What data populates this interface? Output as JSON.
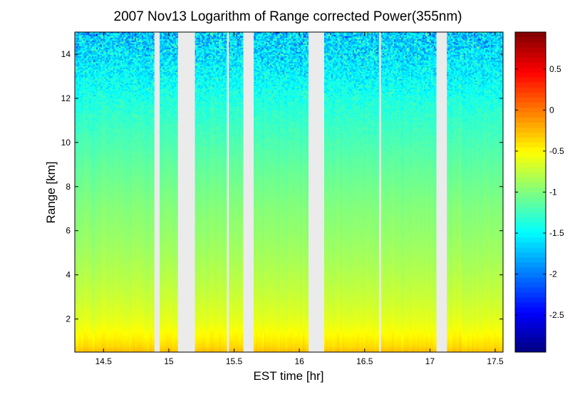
{
  "chart_data": {
    "type": "heatmap",
    "title": "2007 Nov13  Logarithm of Range corrected Power(355nm)",
    "xlabel": "EST time [hr]",
    "ylabel": "Range [km]",
    "xlim": [
      14.28,
      17.56
    ],
    "ylim": [
      0.5,
      15.0
    ],
    "x_ticks": [
      14.5,
      15,
      15.5,
      16,
      16.5,
      17,
      17.5
    ],
    "x_tick_labels": [
      "14.5",
      "15",
      "15.5",
      "16",
      "16.5",
      "17",
      "17.5"
    ],
    "y_ticks": [
      2,
      4,
      6,
      8,
      10,
      12,
      14
    ],
    "y_tick_labels": [
      "2",
      "4",
      "6",
      "8",
      "10",
      "12",
      "14"
    ],
    "colormap": "jet",
    "colorbar": {
      "clim": [
        -2.95,
        0.95
      ],
      "ticks": [
        0.5,
        0,
        -0.5,
        -1,
        -1.5,
        -2,
        -2.5
      ],
      "tick_labels": [
        "0.5",
        "0",
        "-0.5",
        "-1",
        "-1.5",
        "-2",
        "-2.5"
      ]
    },
    "data_gaps_hr": [
      [
        14.89,
        14.93
      ],
      [
        15.07,
        15.2
      ],
      [
        15.445,
        15.46
      ],
      [
        15.57,
        15.65
      ],
      [
        16.07,
        16.19
      ],
      [
        16.61,
        16.625
      ],
      [
        17.05,
        17.13
      ]
    ],
    "gap_color": "#ebebeb",
    "signal_profile": {
      "range_km": [
        0.5,
        0.8,
        1.2,
        1.6,
        2.0,
        3.0,
        4.0,
        5.0,
        6.0,
        7.0,
        8.0,
        9.0,
        10.0,
        11.0,
        12.0,
        13.0,
        14.0,
        15.0
      ],
      "log_power": [
        -0.25,
        -0.38,
        -0.48,
        -0.56,
        -0.62,
        -0.72,
        -0.8,
        -0.87,
        -0.93,
        -0.98,
        -1.05,
        -1.12,
        -1.2,
        -1.28,
        -1.38,
        -1.5,
        -1.6,
        -1.68
      ]
    }
  }
}
